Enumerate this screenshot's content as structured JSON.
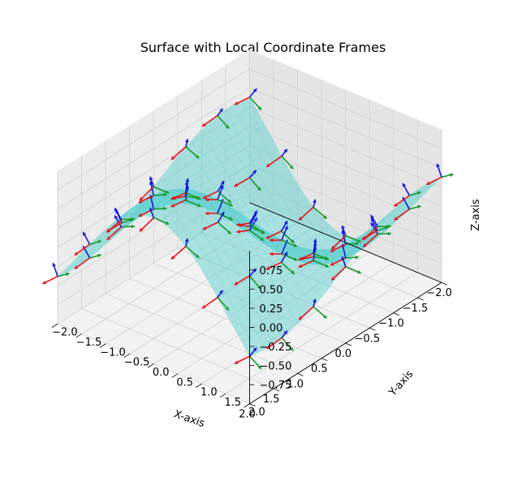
{
  "chart_data": {
    "type": "surface3d",
    "title": "Surface with Local Coordinate Frames",
    "xlabel": "X-axis",
    "ylabel": "Y-axis",
    "zlabel": "Z-axis",
    "xlim": [
      -2,
      2
    ],
    "ylim": [
      -2,
      2
    ],
    "zlim": [
      -1,
      1
    ],
    "x_ticks": [
      "−2.0",
      "−1.5",
      "−1.0",
      "−0.5",
      "0.0",
      "0.5",
      "1.0",
      "1.5",
      "2.0"
    ],
    "y_ticks": [
      "−2.0",
      "−1.5",
      "−1.0",
      "−0.5",
      "0.0",
      "0.5",
      "1.0",
      "1.5",
      "2.0"
    ],
    "z_ticks": [
      "−0.75",
      "−0.50",
      "−0.25",
      "0.00",
      "0.25",
      "0.50",
      "0.75"
    ],
    "grid": true,
    "surface": {
      "function": "z = sin(x) * cos(y)",
      "x_range": [
        -2,
        2
      ],
      "y_range": [
        -2,
        2
      ],
      "color": "#5fd0d0",
      "alpha": 0.5
    },
    "frames": {
      "grid_x": [
        -2.0,
        -1.33,
        -0.67,
        0.0,
        0.67,
        1.33,
        2.0
      ],
      "grid_y": [
        -2.0,
        -1.33,
        -0.67,
        0.0,
        0.67,
        1.33,
        2.0
      ],
      "axis_colors": {
        "x": "#e8141a",
        "y": "#1a9a2a",
        "z": "#1414e0"
      }
    }
  },
  "colors": {
    "pane_left": "#ececec",
    "pane_right": "#e5e5e5",
    "pane_floor": "#f2f2f2",
    "grid": "#d0d0d0"
  }
}
